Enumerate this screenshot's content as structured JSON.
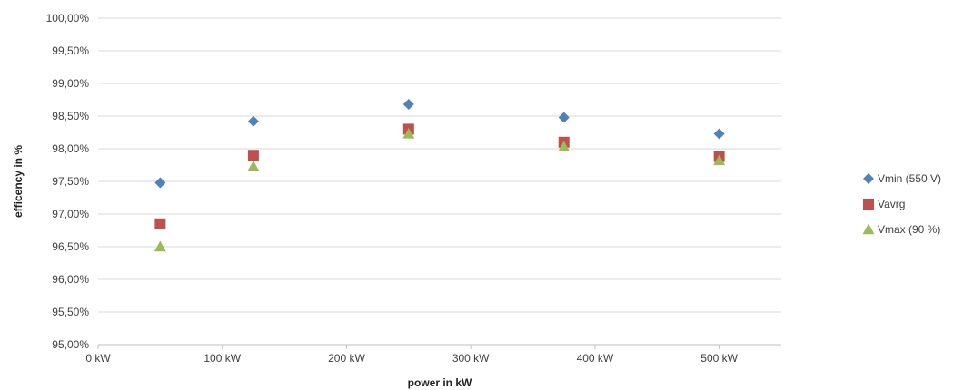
{
  "chart_data": {
    "type": "scatter",
    "title": "",
    "xlabel": "power in kW",
    "ylabel": "efficency in %",
    "xlim": [
      0,
      550
    ],
    "ylim": [
      95.0,
      100.0
    ],
    "x_ticks": [
      0,
      100,
      200,
      300,
      400,
      500
    ],
    "x_tick_labels": [
      "0 kW",
      "100 kW",
      "200 kW",
      "300 kW",
      "400 kW",
      "500 kW"
    ],
    "y_ticks": [
      95.0,
      95.5,
      96.0,
      96.5,
      97.0,
      97.5,
      98.0,
      98.5,
      99.0,
      99.5,
      100.0
    ],
    "y_tick_labels": [
      "95,00%",
      "95,50%",
      "96,00%",
      "96,50%",
      "97,00%",
      "97,50%",
      "98,00%",
      "98,50%",
      "99,00%",
      "99,50%",
      "100,00%"
    ],
    "grid": "horizontal",
    "legend_position": "right",
    "series": [
      {
        "name": "Vmin (550 V)",
        "marker": "diamond",
        "color": "#4f81bd",
        "x": [
          50,
          125,
          250,
          375,
          500
        ],
        "y": [
          97.48,
          98.42,
          98.68,
          98.48,
          98.23
        ]
      },
      {
        "name": "Vavrg",
        "marker": "square",
        "color": "#c0504d",
        "x": [
          50,
          125,
          250,
          375,
          500
        ],
        "y": [
          96.85,
          97.9,
          98.3,
          98.1,
          97.88
        ]
      },
      {
        "name": "Vmax (90 %)",
        "marker": "triangle",
        "color": "#9bbb59",
        "x": [
          50,
          125,
          250,
          375,
          500
        ],
        "y": [
          96.5,
          97.73,
          98.23,
          98.03,
          97.82
        ]
      }
    ]
  }
}
